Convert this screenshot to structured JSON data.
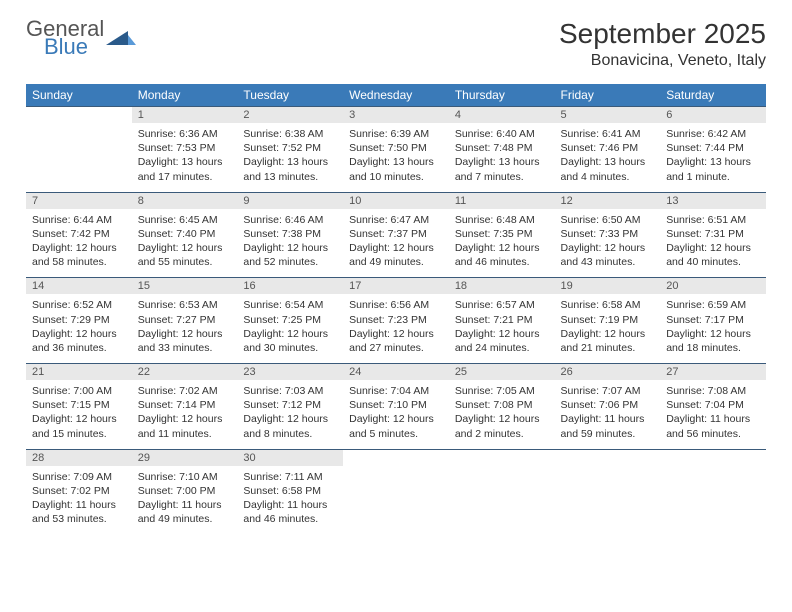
{
  "logo": {
    "line1": "General",
    "line2": "Blue"
  },
  "title": "September 2025",
  "location": "Bonavicina, Veneto, Italy",
  "colors": {
    "header_bg": "#3a7ab8",
    "header_text": "#ffffff",
    "daynum_bg": "#e8e8e8",
    "border": "#3a5a7a",
    "text": "#333333"
  },
  "weekdays": [
    "Sunday",
    "Monday",
    "Tuesday",
    "Wednesday",
    "Thursday",
    "Friday",
    "Saturday"
  ],
  "weeks": [
    [
      null,
      {
        "n": "1",
        "sr": "6:36 AM",
        "ss": "7:53 PM",
        "dl": "13 hours and 17 minutes."
      },
      {
        "n": "2",
        "sr": "6:38 AM",
        "ss": "7:52 PM",
        "dl": "13 hours and 13 minutes."
      },
      {
        "n": "3",
        "sr": "6:39 AM",
        "ss": "7:50 PM",
        "dl": "13 hours and 10 minutes."
      },
      {
        "n": "4",
        "sr": "6:40 AM",
        "ss": "7:48 PM",
        "dl": "13 hours and 7 minutes."
      },
      {
        "n": "5",
        "sr": "6:41 AM",
        "ss": "7:46 PM",
        "dl": "13 hours and 4 minutes."
      },
      {
        "n": "6",
        "sr": "6:42 AM",
        "ss": "7:44 PM",
        "dl": "13 hours and 1 minute."
      }
    ],
    [
      {
        "n": "7",
        "sr": "6:44 AM",
        "ss": "7:42 PM",
        "dl": "12 hours and 58 minutes."
      },
      {
        "n": "8",
        "sr": "6:45 AM",
        "ss": "7:40 PM",
        "dl": "12 hours and 55 minutes."
      },
      {
        "n": "9",
        "sr": "6:46 AM",
        "ss": "7:38 PM",
        "dl": "12 hours and 52 minutes."
      },
      {
        "n": "10",
        "sr": "6:47 AM",
        "ss": "7:37 PM",
        "dl": "12 hours and 49 minutes."
      },
      {
        "n": "11",
        "sr": "6:48 AM",
        "ss": "7:35 PM",
        "dl": "12 hours and 46 minutes."
      },
      {
        "n": "12",
        "sr": "6:50 AM",
        "ss": "7:33 PM",
        "dl": "12 hours and 43 minutes."
      },
      {
        "n": "13",
        "sr": "6:51 AM",
        "ss": "7:31 PM",
        "dl": "12 hours and 40 minutes."
      }
    ],
    [
      {
        "n": "14",
        "sr": "6:52 AM",
        "ss": "7:29 PM",
        "dl": "12 hours and 36 minutes."
      },
      {
        "n": "15",
        "sr": "6:53 AM",
        "ss": "7:27 PM",
        "dl": "12 hours and 33 minutes."
      },
      {
        "n": "16",
        "sr": "6:54 AM",
        "ss": "7:25 PM",
        "dl": "12 hours and 30 minutes."
      },
      {
        "n": "17",
        "sr": "6:56 AM",
        "ss": "7:23 PM",
        "dl": "12 hours and 27 minutes."
      },
      {
        "n": "18",
        "sr": "6:57 AM",
        "ss": "7:21 PM",
        "dl": "12 hours and 24 minutes."
      },
      {
        "n": "19",
        "sr": "6:58 AM",
        "ss": "7:19 PM",
        "dl": "12 hours and 21 minutes."
      },
      {
        "n": "20",
        "sr": "6:59 AM",
        "ss": "7:17 PM",
        "dl": "12 hours and 18 minutes."
      }
    ],
    [
      {
        "n": "21",
        "sr": "7:00 AM",
        "ss": "7:15 PM",
        "dl": "12 hours and 15 minutes."
      },
      {
        "n": "22",
        "sr": "7:02 AM",
        "ss": "7:14 PM",
        "dl": "12 hours and 11 minutes."
      },
      {
        "n": "23",
        "sr": "7:03 AM",
        "ss": "7:12 PM",
        "dl": "12 hours and 8 minutes."
      },
      {
        "n": "24",
        "sr": "7:04 AM",
        "ss": "7:10 PM",
        "dl": "12 hours and 5 minutes."
      },
      {
        "n": "25",
        "sr": "7:05 AM",
        "ss": "7:08 PM",
        "dl": "12 hours and 2 minutes."
      },
      {
        "n": "26",
        "sr": "7:07 AM",
        "ss": "7:06 PM",
        "dl": "11 hours and 59 minutes."
      },
      {
        "n": "27",
        "sr": "7:08 AM",
        "ss": "7:04 PM",
        "dl": "11 hours and 56 minutes."
      }
    ],
    [
      {
        "n": "28",
        "sr": "7:09 AM",
        "ss": "7:02 PM",
        "dl": "11 hours and 53 minutes."
      },
      {
        "n": "29",
        "sr": "7:10 AM",
        "ss": "7:00 PM",
        "dl": "11 hours and 49 minutes."
      },
      {
        "n": "30",
        "sr": "7:11 AM",
        "ss": "6:58 PM",
        "dl": "11 hours and 46 minutes."
      },
      null,
      null,
      null,
      null
    ]
  ],
  "labels": {
    "sunrise": "Sunrise:",
    "sunset": "Sunset:",
    "daylight": "Daylight:"
  }
}
